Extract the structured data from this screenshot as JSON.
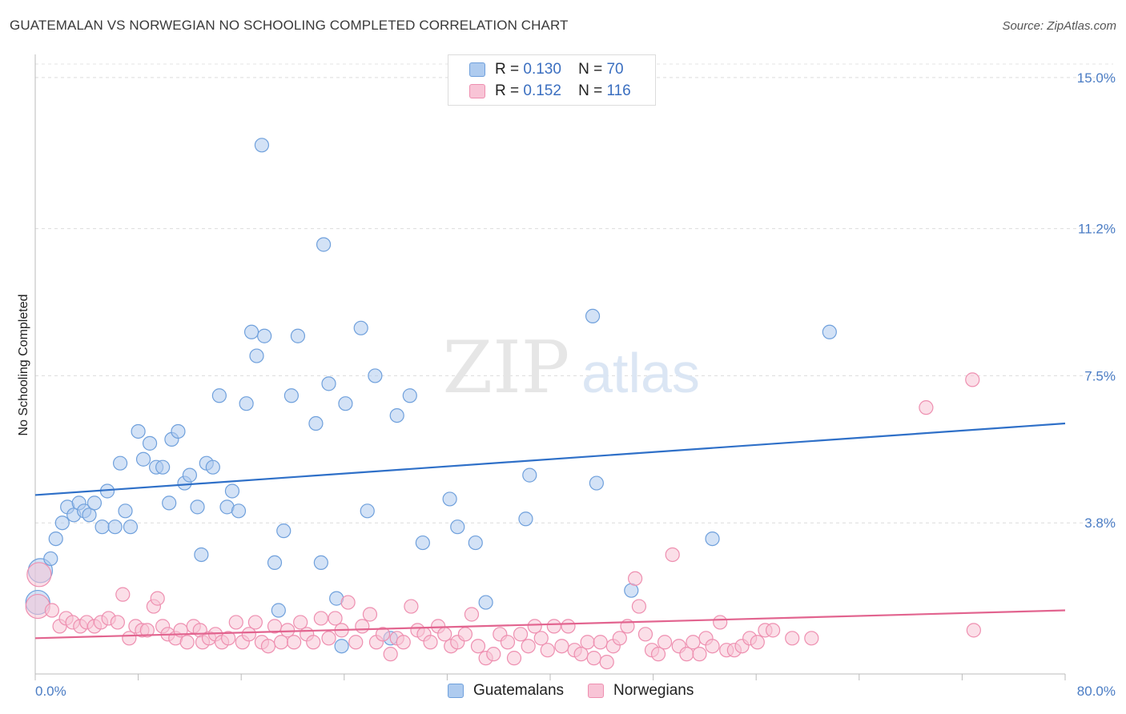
{
  "chart_data": {
    "type": "scatter",
    "title": "GUATEMALAN VS NORWEGIAN NO SCHOOLING COMPLETED CORRELATION CHART",
    "source": "Source: ZipAtlas.com",
    "ylabel": "No Schooling Completed",
    "xlabel": "",
    "xlim": [
      0,
      80
    ],
    "ylim": [
      0,
      15.5
    ],
    "y_ticks": [
      {
        "value": 3.8,
        "label": "3.8%"
      },
      {
        "value": 7.5,
        "label": "7.5%"
      },
      {
        "value": 11.2,
        "label": "11.2%"
      },
      {
        "value": 15.0,
        "label": "15.0%"
      }
    ],
    "x_tick_labels": {
      "min": "0.0%",
      "max": "80.0%"
    },
    "grid": true,
    "watermark": {
      "zip": "ZIP",
      "atlas": "atlas"
    },
    "legend": {
      "placement": "top-center",
      "rows": [
        {
          "r_label": "R =",
          "r_value": "0.130",
          "n_label": "N =",
          "n_value": "70"
        },
        {
          "r_label": "R =",
          "r_value": "0.152",
          "n_label": "N =",
          "n_value": "116"
        }
      ]
    },
    "series": [
      {
        "name": "Guatemalans",
        "color": "#6fa0dc",
        "fill": "#aecbef",
        "line_color": "#2f70c8",
        "trend": [
          [
            0,
            4.5
          ],
          [
            80,
            6.3
          ]
        ],
        "points": [
          [
            0.2,
            1.8
          ],
          [
            0.4,
            2.6
          ],
          [
            1.2,
            2.9
          ],
          [
            1.6,
            3.4
          ],
          [
            2.1,
            3.8
          ],
          [
            2.5,
            4.2
          ],
          [
            3.0,
            4.0
          ],
          [
            3.4,
            4.3
          ],
          [
            3.8,
            4.1
          ],
          [
            4.2,
            4.0
          ],
          [
            4.6,
            4.3
          ],
          [
            5.2,
            3.7
          ],
          [
            5.6,
            4.6
          ],
          [
            6.2,
            3.7
          ],
          [
            6.6,
            5.3
          ],
          [
            7.0,
            4.1
          ],
          [
            7.4,
            3.7
          ],
          [
            8.0,
            6.1
          ],
          [
            8.4,
            5.4
          ],
          [
            8.9,
            5.8
          ],
          [
            9.4,
            5.2
          ],
          [
            9.9,
            5.2
          ],
          [
            10.4,
            4.3
          ],
          [
            10.6,
            5.9
          ],
          [
            11.1,
            6.1
          ],
          [
            11.6,
            4.8
          ],
          [
            12.0,
            5.0
          ],
          [
            12.6,
            4.2
          ],
          [
            12.9,
            3.0
          ],
          [
            13.3,
            5.3
          ],
          [
            13.8,
            5.2
          ],
          [
            14.3,
            7.0
          ],
          [
            14.9,
            4.2
          ],
          [
            15.3,
            4.6
          ],
          [
            15.8,
            4.1
          ],
          [
            16.4,
            6.8
          ],
          [
            16.8,
            8.6
          ],
          [
            17.2,
            8.0
          ],
          [
            17.8,
            8.5
          ],
          [
            17.6,
            13.3
          ],
          [
            18.6,
            2.8
          ],
          [
            18.9,
            1.6
          ],
          [
            19.3,
            3.6
          ],
          [
            19.9,
            7.0
          ],
          [
            20.4,
            8.5
          ],
          [
            21.8,
            6.3
          ],
          [
            22.2,
            2.8
          ],
          [
            22.4,
            10.8
          ],
          [
            22.8,
            7.3
          ],
          [
            23.4,
            1.9
          ],
          [
            23.8,
            0.7
          ],
          [
            24.1,
            6.8
          ],
          [
            25.3,
            8.7
          ],
          [
            25.8,
            4.1
          ],
          [
            26.4,
            7.5
          ],
          [
            27.6,
            0.9
          ],
          [
            28.1,
            6.5
          ],
          [
            29.1,
            7.0
          ],
          [
            30.1,
            3.3
          ],
          [
            32.2,
            4.4
          ],
          [
            32.8,
            3.7
          ],
          [
            34.2,
            3.3
          ],
          [
            35.0,
            1.8
          ],
          [
            38.1,
            3.9
          ],
          [
            38.4,
            5.0
          ],
          [
            43.3,
            9.0
          ],
          [
            43.6,
            4.8
          ],
          [
            46.3,
            2.1
          ],
          [
            52.6,
            3.4
          ],
          [
            61.7,
            8.6
          ]
        ]
      },
      {
        "name": "Norwegians",
        "color": "#ee8fb0",
        "fill": "#f8c4d6",
        "line_color": "#e2648f",
        "trend": [
          [
            0,
            0.9
          ],
          [
            80,
            1.6
          ]
        ],
        "points": [
          [
            0.2,
            1.7
          ],
          [
            0.3,
            2.5
          ],
          [
            1.3,
            1.6
          ],
          [
            1.9,
            1.2
          ],
          [
            2.4,
            1.4
          ],
          [
            2.9,
            1.3
          ],
          [
            3.5,
            1.2
          ],
          [
            4.0,
            1.3
          ],
          [
            4.6,
            1.2
          ],
          [
            5.1,
            1.3
          ],
          [
            5.7,
            1.4
          ],
          [
            6.4,
            1.3
          ],
          [
            6.8,
            2.0
          ],
          [
            7.3,
            0.9
          ],
          [
            7.8,
            1.2
          ],
          [
            8.3,
            1.1
          ],
          [
            8.7,
            1.1
          ],
          [
            9.2,
            1.7
          ],
          [
            9.5,
            1.9
          ],
          [
            9.9,
            1.2
          ],
          [
            10.3,
            1.0
          ],
          [
            10.9,
            0.9
          ],
          [
            11.3,
            1.1
          ],
          [
            11.8,
            0.8
          ],
          [
            12.3,
            1.2
          ],
          [
            12.8,
            1.1
          ],
          [
            13.0,
            0.8
          ],
          [
            13.5,
            0.9
          ],
          [
            14.0,
            1.0
          ],
          [
            14.5,
            0.8
          ],
          [
            15.0,
            0.9
          ],
          [
            15.6,
            1.3
          ],
          [
            16.1,
            0.8
          ],
          [
            16.6,
            1.0
          ],
          [
            17.1,
            1.3
          ],
          [
            17.6,
            0.8
          ],
          [
            18.1,
            0.7
          ],
          [
            18.6,
            1.2
          ],
          [
            19.1,
            0.8
          ],
          [
            19.6,
            1.1
          ],
          [
            20.1,
            0.8
          ],
          [
            20.6,
            1.3
          ],
          [
            21.1,
            1.0
          ],
          [
            21.6,
            0.8
          ],
          [
            22.2,
            1.4
          ],
          [
            22.8,
            0.9
          ],
          [
            23.3,
            1.4
          ],
          [
            23.8,
            1.1
          ],
          [
            24.3,
            1.8
          ],
          [
            24.9,
            0.8
          ],
          [
            25.4,
            1.2
          ],
          [
            26.0,
            1.5
          ],
          [
            26.5,
            0.8
          ],
          [
            27.0,
            1.0
          ],
          [
            27.6,
            0.5
          ],
          [
            28.1,
            0.9
          ],
          [
            28.6,
            0.8
          ],
          [
            29.2,
            1.7
          ],
          [
            29.7,
            1.1
          ],
          [
            30.2,
            1.0
          ],
          [
            30.7,
            0.8
          ],
          [
            31.3,
            1.2
          ],
          [
            31.8,
            1.0
          ],
          [
            32.3,
            0.7
          ],
          [
            32.8,
            0.8
          ],
          [
            33.4,
            1.0
          ],
          [
            33.9,
            1.5
          ],
          [
            34.4,
            0.7
          ],
          [
            35.0,
            0.4
          ],
          [
            35.6,
            0.5
          ],
          [
            36.1,
            1.0
          ],
          [
            36.7,
            0.8
          ],
          [
            37.2,
            0.4
          ],
          [
            37.7,
            1.0
          ],
          [
            38.3,
            0.7
          ],
          [
            38.8,
            1.2
          ],
          [
            39.3,
            0.9
          ],
          [
            39.8,
            0.6
          ],
          [
            40.3,
            1.2
          ],
          [
            40.9,
            0.7
          ],
          [
            41.4,
            1.2
          ],
          [
            41.9,
            0.6
          ],
          [
            42.4,
            0.5
          ],
          [
            42.9,
            0.8
          ],
          [
            43.4,
            0.4
          ],
          [
            43.9,
            0.8
          ],
          [
            44.4,
            0.3
          ],
          [
            44.9,
            0.7
          ],
          [
            45.4,
            0.9
          ],
          [
            46.0,
            1.2
          ],
          [
            46.6,
            2.4
          ],
          [
            46.9,
            1.7
          ],
          [
            47.4,
            1.0
          ],
          [
            47.9,
            0.6
          ],
          [
            48.4,
            0.5
          ],
          [
            48.9,
            0.8
          ],
          [
            49.5,
            3.0
          ],
          [
            50.0,
            0.7
          ],
          [
            50.6,
            0.5
          ],
          [
            51.1,
            0.8
          ],
          [
            51.6,
            0.5
          ],
          [
            52.1,
            0.9
          ],
          [
            52.6,
            0.7
          ],
          [
            53.2,
            1.3
          ],
          [
            53.7,
            0.6
          ],
          [
            54.3,
            0.6
          ],
          [
            54.9,
            0.7
          ],
          [
            55.5,
            0.9
          ],
          [
            56.1,
            0.8
          ],
          [
            56.7,
            1.1
          ],
          [
            57.3,
            1.1
          ],
          [
            58.8,
            0.9
          ],
          [
            60.3,
            0.9
          ],
          [
            69.2,
            6.7
          ],
          [
            72.8,
            7.4
          ],
          [
            72.9,
            1.1
          ]
        ]
      }
    ]
  }
}
